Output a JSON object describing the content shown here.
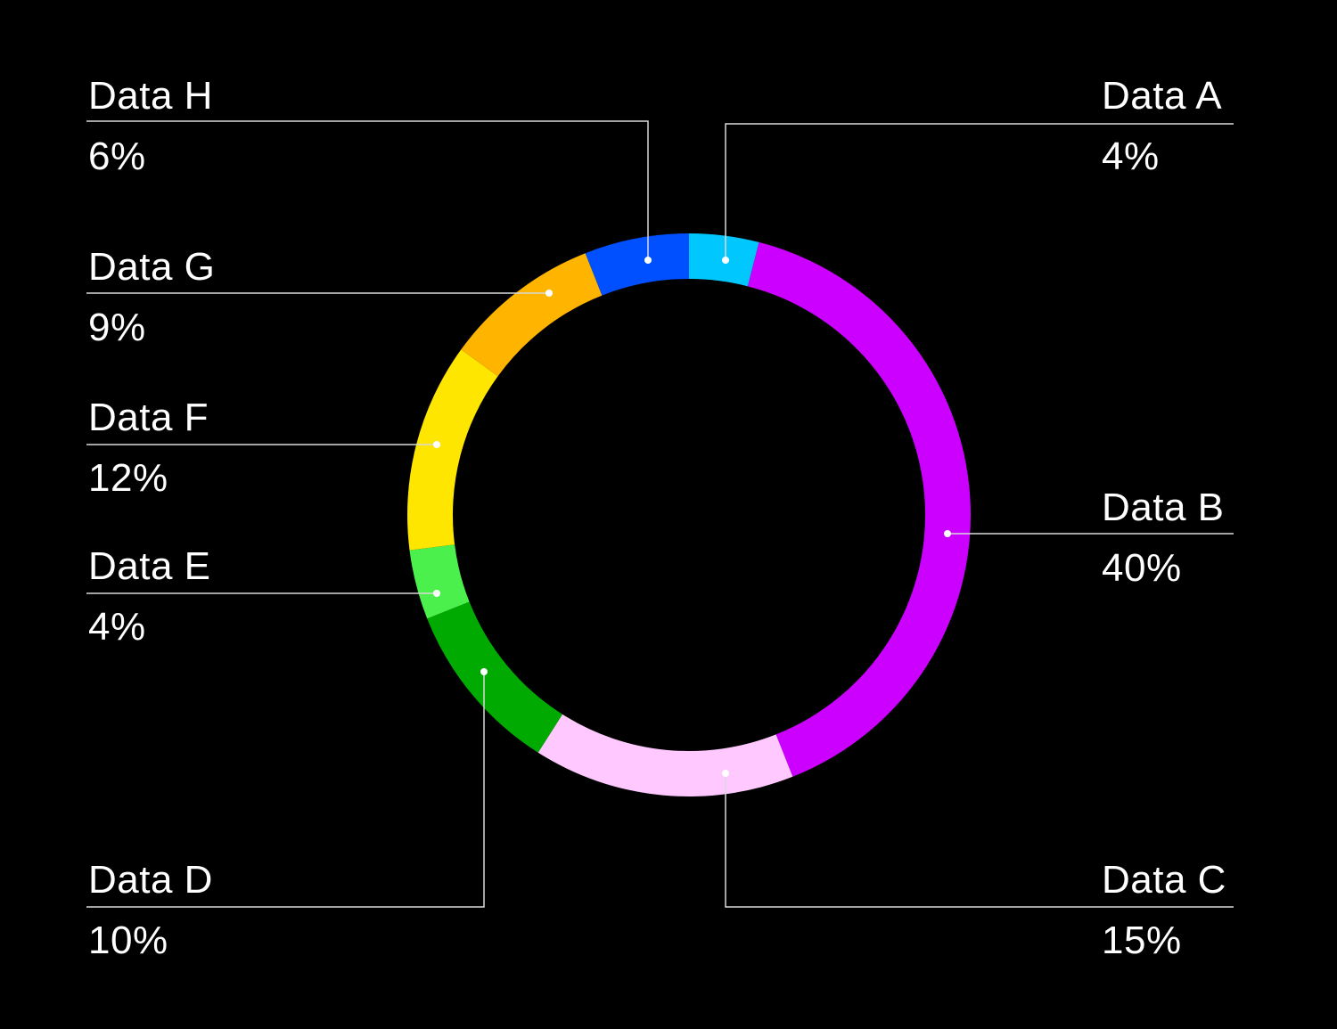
{
  "chart_data": {
    "type": "pie",
    "variant": "donut",
    "title": "",
    "categories": [
      "Data A",
      "Data B",
      "Data C",
      "Data D",
      "Data E",
      "Data F",
      "Data G",
      "Data H"
    ],
    "values": [
      4,
      40,
      15,
      10,
      4,
      12,
      9,
      6
    ],
    "unit": "%",
    "colors": [
      "#00C8FF",
      "#CC00FF",
      "#FFC8FF",
      "#00AA00",
      "#4CF04C",
      "#FFE600",
      "#FFB400",
      "#0050FF"
    ],
    "start_angle": "12 o'clock",
    "direction": "clockwise",
    "legend_position": "outside labels with leader lines"
  },
  "labels": {
    "a": {
      "name": "Data A",
      "value": "4%"
    },
    "b": {
      "name": "Data B",
      "value": "40%"
    },
    "c": {
      "name": "Data C",
      "value": "15%"
    },
    "d": {
      "name": "Data D",
      "value": "10%"
    },
    "e": {
      "name": "Data E",
      "value": "4%"
    },
    "f": {
      "name": "Data F",
      "value": "12%"
    },
    "g": {
      "name": "Data G",
      "value": "9%"
    },
    "h": {
      "name": "Data H",
      "value": "6%"
    }
  },
  "style": {
    "background": "#000000",
    "text_color": "#FFFFFF",
    "leader_color": "#D9D9D9"
  }
}
